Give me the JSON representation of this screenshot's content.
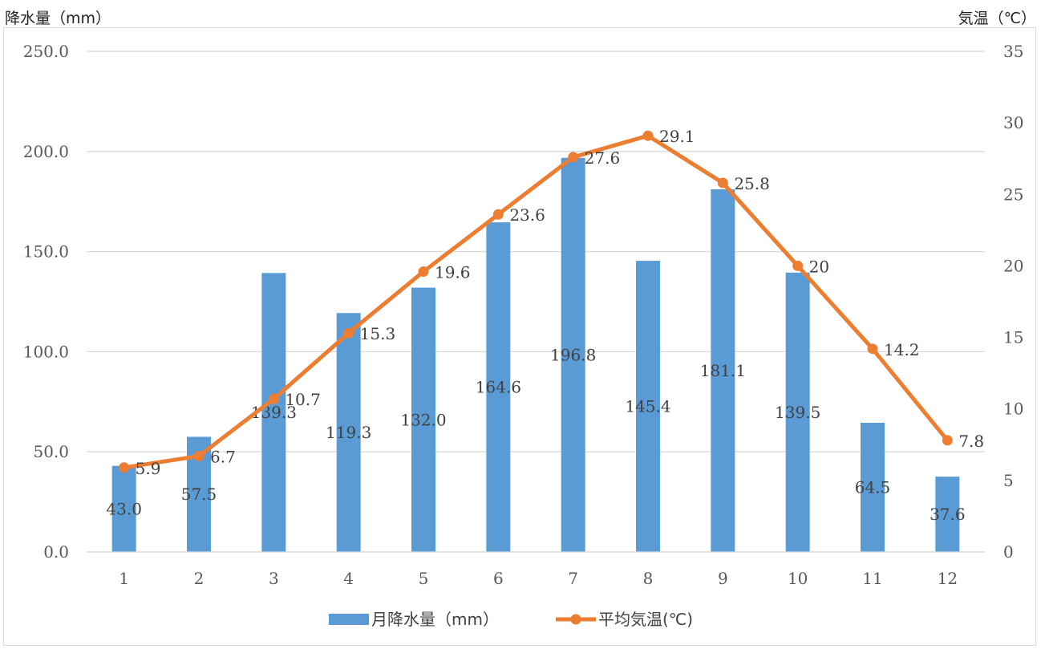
{
  "chart_data": {
    "type": "bar",
    "categories": [
      "1",
      "2",
      "3",
      "4",
      "5",
      "6",
      "7",
      "8",
      "9",
      "10",
      "11",
      "12"
    ],
    "series": [
      {
        "name": "月降水量（mm）",
        "type": "bar",
        "axis": "left",
        "values": [
          43.0,
          57.5,
          139.3,
          119.3,
          132.0,
          164.6,
          196.8,
          145.4,
          181.1,
          139.5,
          64.5,
          37.6
        ],
        "labels": [
          "43.0",
          "57.5",
          "139.3",
          "119.3",
          "132.0",
          "164.6",
          "196.8",
          "145.4",
          "181.1",
          "139.5",
          "64.5",
          "37.6"
        ]
      },
      {
        "name": "平均気温(℃)",
        "type": "line",
        "axis": "right",
        "values": [
          5.9,
          6.7,
          10.7,
          15.3,
          19.6,
          23.6,
          27.6,
          29.1,
          25.8,
          20,
          14.2,
          7.8
        ],
        "labels": [
          "5.9",
          "6.7",
          "10.7",
          "15.3",
          "19.6",
          "23.6",
          "27.6",
          "29.1",
          "25.8",
          "20",
          "14.2",
          "7.8"
        ]
      }
    ],
    "y_left": {
      "label": "降水量（mm）",
      "lim": [
        0,
        250
      ],
      "ticks": [
        0,
        50,
        100,
        150,
        200,
        250
      ],
      "tick_labels": [
        "0.0",
        "50.0",
        "100.0",
        "150.0",
        "200.0",
        "250.0"
      ]
    },
    "y_right": {
      "label": "気温（℃）",
      "lim": [
        0,
        35
      ],
      "ticks": [
        0,
        5,
        10,
        15,
        20,
        25,
        30,
        35
      ],
      "tick_labels": [
        "0",
        "5",
        "10",
        "15",
        "20",
        "25",
        "30",
        "35"
      ]
    },
    "grid": true,
    "legend_position": "bottom",
    "colors": {
      "bar": "#5b9bd5",
      "line": "#ed7d31",
      "grid": "#d9d9d9"
    }
  }
}
